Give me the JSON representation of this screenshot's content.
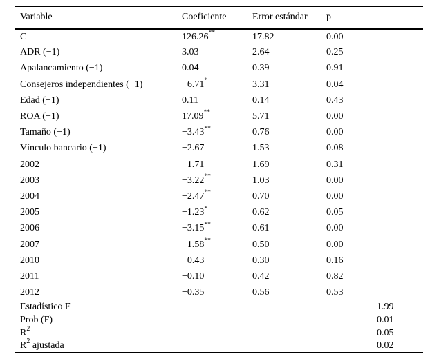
{
  "colors": {
    "text": "#000000",
    "background": "#ffffff",
    "rule": "#000000"
  },
  "table": {
    "headers": [
      "Variable",
      "Coeficiente",
      "Error estándar",
      "p"
    ],
    "rows": [
      {
        "variable": "C",
        "coef": "126.26",
        "sig": "**",
        "se": "17.82",
        "p": "0.00"
      },
      {
        "variable": "ADR (−1)",
        "coef": "3.03",
        "sig": "",
        "se": "2.64",
        "p": "0.25"
      },
      {
        "variable": "Apalancamiento (−1)",
        "coef": "0.04",
        "sig": "",
        "se": "0.39",
        "p": "0.91"
      },
      {
        "variable": "Consejeros independientes (−1)",
        "coef": "−6.71",
        "sig": "*",
        "se": "3.31",
        "p": "0.04"
      },
      {
        "variable": "Edad (−1)",
        "coef": "0.11",
        "sig": "",
        "se": "0.14",
        "p": "0.43"
      },
      {
        "variable": "ROA (−1)",
        "coef": "17.09",
        "sig": "**",
        "se": "5.71",
        "p": "0.00"
      },
      {
        "variable": "Tamaño (−1)",
        "coef": "−3.43",
        "sig": "**",
        "se": "0.76",
        "p": "0.00"
      },
      {
        "variable": "Vínculo bancario (−1)",
        "coef": "−2.67",
        "sig": "",
        "se": "1.53",
        "p": "0.08"
      },
      {
        "variable": "2002",
        "coef": "−1.71",
        "sig": "",
        "se": "1.69",
        "p": "0.31"
      },
      {
        "variable": "2003",
        "coef": "−3.22",
        "sig": "**",
        "se": "1.03",
        "p": "0.00"
      },
      {
        "variable": "2004",
        "coef": "−2.47",
        "sig": "**",
        "se": "0.70",
        "p": "0.00"
      },
      {
        "variable": "2005",
        "coef": "−1.23",
        "sig": "*",
        "se": "0.62",
        "p": "0.05"
      },
      {
        "variable": "2006",
        "coef": "−3.15",
        "sig": "**",
        "se": "0.61",
        "p": "0.00"
      },
      {
        "variable": "2007",
        "coef": "−1.58",
        "sig": "**",
        "se": "0.50",
        "p": "0.00"
      },
      {
        "variable": "2010",
        "coef": "−0.43",
        "sig": "",
        "se": "0.30",
        "p": "0.16"
      },
      {
        "variable": "2011",
        "coef": "−0.10",
        "sig": "",
        "se": "0.42",
        "p": "0.82"
      },
      {
        "variable": "2012",
        "coef": "−0.35",
        "sig": "",
        "se": "0.56",
        "p": "0.53"
      }
    ],
    "summary": [
      {
        "label_base": "Estadístico F",
        "label_sup": "",
        "label_rest": "",
        "value": "1.99"
      },
      {
        "label_base": "Prob (F)",
        "label_sup": "",
        "label_rest": "",
        "value": "0.01"
      },
      {
        "label_base": "R",
        "label_sup": "2",
        "label_rest": "",
        "value": "0.05"
      },
      {
        "label_base": "R",
        "label_sup": "2",
        "label_rest": "ajustada",
        "value": "0.02"
      }
    ]
  }
}
